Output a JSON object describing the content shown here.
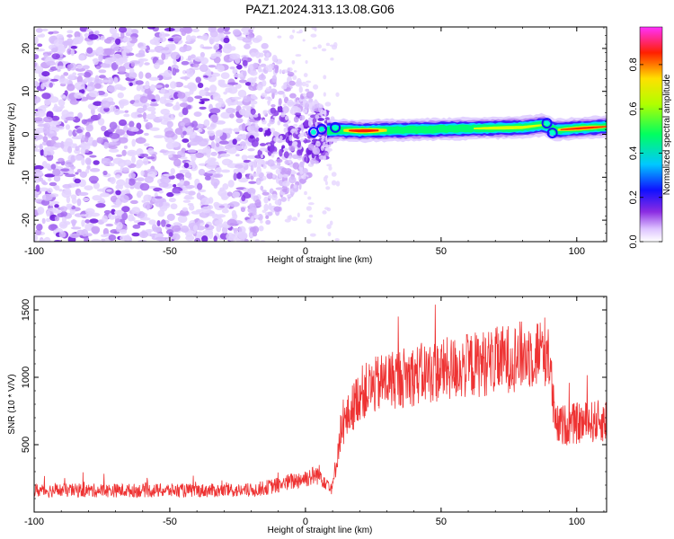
{
  "title": "PAZ1.2024.313.13.08.G06",
  "chart_data": [
    {
      "type": "heatmap",
      "xlabel": "Height of straight line (km)",
      "ylabel": "Frequency (Hz)",
      "xlim": [
        -100,
        111
      ],
      "ylim": [
        -25,
        25
      ],
      "xticks": [
        -100,
        -50,
        0,
        50,
        100
      ],
      "yticks": [
        -20,
        -10,
        0,
        10,
        20
      ],
      "colorbar": {
        "label": "Normalized spectral amplitude",
        "range": [
          0,
          0.97
        ],
        "ticks": [
          "0.0",
          "0.2",
          "0.4",
          "0.6",
          "0.8"
        ],
        "colormap": [
          "#ffffff",
          "#e6d0ff",
          "#8a2be2",
          "#0000ff",
          "#00ffff",
          "#00ff00",
          "#ffff00",
          "#ff0000",
          "#ff00ff"
        ]
      },
      "signal_band": {
        "description_points": [
          {
            "x": 2,
            "y": 0.3
          },
          {
            "x": 10,
            "y": 1.0
          },
          {
            "x": 20,
            "y": 0.8
          },
          {
            "x": 50,
            "y": 1.2
          },
          {
            "x": 80,
            "y": 1.6
          },
          {
            "x": 88,
            "y": 2.2
          },
          {
            "x": 92,
            "y": 1.0
          },
          {
            "x": 111,
            "y": 1.8
          }
        ],
        "peak_x_range": [
          14,
          28
        ]
      }
    },
    {
      "type": "line",
      "xlabel": "Height of straight line (km)",
      "ylabel": "SNR (10 * V/V)",
      "xlim": [
        -100,
        111
      ],
      "ylim": [
        0,
        1600
      ],
      "xticks": [
        -100,
        -50,
        0,
        50,
        100
      ],
      "yticks": [
        500,
        1000,
        1500
      ],
      "series": [
        {
          "color": "#ee3333",
          "trend": [
            {
              "x": -100,
              "y": 160
            },
            {
              "x": -20,
              "y": 160
            },
            {
              "x": -10,
              "y": 200
            },
            {
              "x": 5,
              "y": 280
            },
            {
              "x": 10,
              "y": 180
            },
            {
              "x": 13,
              "y": 600
            },
            {
              "x": 20,
              "y": 880
            },
            {
              "x": 30,
              "y": 980
            },
            {
              "x": 50,
              "y": 1050
            },
            {
              "x": 70,
              "y": 1120
            },
            {
              "x": 89,
              "y": 1200
            },
            {
              "x": 90,
              "y": 1120
            },
            {
              "x": 92,
              "y": 640
            },
            {
              "x": 111,
              "y": 680
            }
          ]
        }
      ]
    }
  ]
}
